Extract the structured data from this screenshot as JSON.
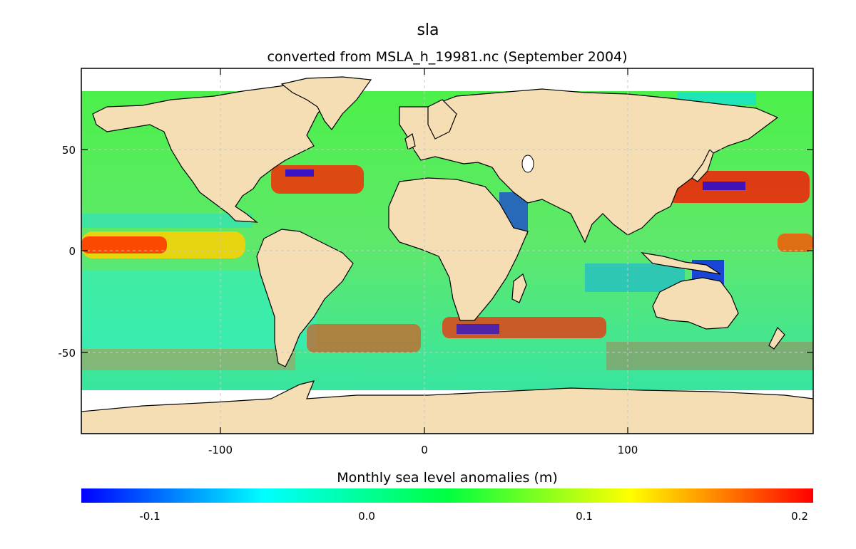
{
  "title": "sla",
  "subtitle": "converted from MSLA_h_19981.nc (September 2004)",
  "colorbar": {
    "label": "Monthly sea level anomalies (m)",
    "ticks": [
      {
        "label": "-0.1",
        "value": -0.1
      },
      {
        "label": "0.0",
        "value": 0.0
      },
      {
        "label": "0.1",
        "value": 0.1
      },
      {
        "label": "0.2",
        "value": 0.2
      }
    ],
    "range": [
      -0.13,
      0.2
    ],
    "colormap": "jet",
    "stops": [
      "#0000ff",
      "#00ffff",
      "#00ff40",
      "#ffff00",
      "#ff0000"
    ]
  },
  "map": {
    "xlim": [
      -170,
      190
    ],
    "ylim": [
      -90,
      90
    ],
    "x_ticks": [
      {
        "label": "-100",
        "value": -100
      },
      {
        "label": "0",
        "value": 0
      },
      {
        "label": "100",
        "value": 100
      }
    ],
    "y_ticks": [
      {
        "label": "50",
        "value": 50
      },
      {
        "label": "0",
        "value": 0
      },
      {
        "label": "-50",
        "value": -50
      }
    ],
    "grid": true,
    "land_color": "#f5deb3",
    "ocean_base_color": "#3fe75a"
  }
}
